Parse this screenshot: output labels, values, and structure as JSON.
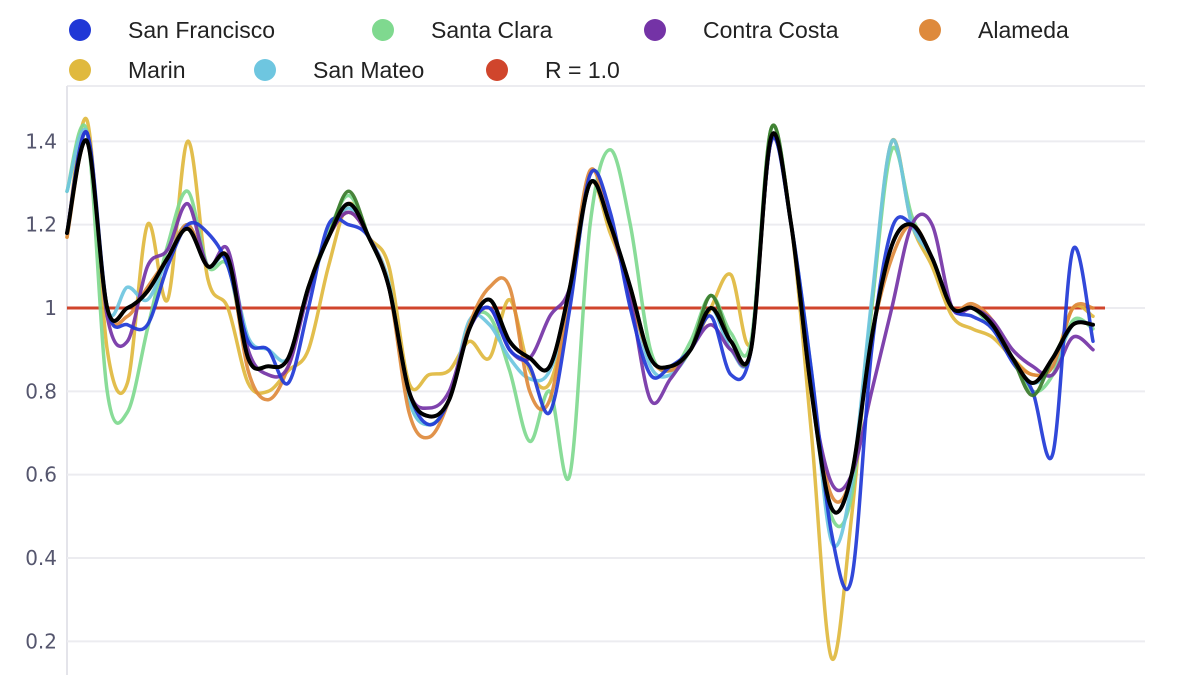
{
  "chart_data": {
    "type": "line",
    "title": "",
    "xlabel": "",
    "ylabel": "",
    "ylim": [
      0.12,
      1.53
    ],
    "y_ticks": [
      "0.2",
      "0.4",
      "0.6",
      "0.8",
      "1",
      "1.2",
      "1.4"
    ],
    "y_tick_values": [
      0.2,
      0.4,
      0.6,
      0.8,
      1.0,
      1.2,
      1.4
    ],
    "grid": true,
    "legend_position": "top",
    "x": [
      0,
      1,
      2,
      3,
      4,
      5,
      6,
      7,
      8,
      9,
      10,
      11,
      12,
      13,
      14,
      15,
      16,
      17,
      18,
      19,
      20,
      21,
      22,
      23,
      24,
      25,
      26,
      27,
      28,
      29,
      30,
      31,
      32,
      33,
      34,
      35,
      36,
      37,
      38,
      39,
      40,
      41,
      42,
      43,
      44,
      45,
      46,
      47,
      48,
      49,
      50,
      51
    ],
    "reference": {
      "name": "R = 1.0",
      "value": 1.0,
      "color": "#d0452c"
    },
    "series": [
      {
        "name": "Marin",
        "color": "#e0b93e",
        "values": [
          1.17,
          1.45,
          0.9,
          0.82,
          1.2,
          1.02,
          1.4,
          1.07,
          1.0,
          0.82,
          0.8,
          0.85,
          0.9,
          1.1,
          1.25,
          1.17,
          1.1,
          0.82,
          0.84,
          0.85,
          0.92,
          0.88,
          1.02,
          0.85,
          0.82,
          1.02,
          1.3,
          1.18,
          1.05,
          0.88,
          0.86,
          0.9,
          1.0,
          1.08,
          0.92,
          1.41,
          1.2,
          0.7,
          0.16,
          0.5,
          1.0,
          1.4,
          1.2,
          1.1,
          0.98,
          0.95,
          0.93,
          0.88,
          0.84,
          0.86,
          1.0,
          0.98
        ]
      },
      {
        "name": "Santa Clara",
        "color": "#7fd98f",
        "values": [
          1.28,
          1.42,
          0.8,
          0.75,
          0.95,
          1.15,
          1.28,
          1.1,
          1.1,
          0.88,
          0.86,
          0.88,
          1.05,
          1.18,
          1.27,
          1.17,
          1.05,
          0.78,
          0.72,
          0.78,
          0.96,
          0.98,
          0.85,
          0.68,
          0.8,
          0.6,
          1.2,
          1.38,
          1.2,
          0.9,
          0.85,
          0.92,
          1.03,
          0.94,
          0.92,
          1.43,
          1.2,
          0.8,
          0.5,
          0.55,
          1.0,
          1.38,
          1.22,
          1.12,
          1.0,
          1.0,
          0.95,
          0.88,
          0.8,
          0.84,
          0.97,
          0.95
        ]
      },
      {
        "name": "San Mateo",
        "color": "#6ec6e0",
        "values": [
          1.28,
          1.42,
          1.0,
          1.05,
          1.02,
          1.12,
          1.2,
          1.1,
          1.12,
          0.93,
          0.9,
          0.88,
          1.04,
          1.17,
          1.24,
          1.17,
          1.06,
          0.78,
          0.72,
          0.78,
          0.97,
          0.96,
          0.88,
          0.83,
          0.85,
          1.03,
          1.3,
          1.2,
          1.04,
          0.86,
          0.84,
          0.9,
          1.0,
          0.9,
          0.9,
          1.41,
          1.2,
          0.85,
          0.44,
          0.58,
          1.02,
          1.4,
          1.2,
          1.12,
          1.0,
          1.0,
          0.96,
          0.88,
          0.82,
          0.86,
          0.96,
          0.96
        ]
      },
      {
        "name": "Alameda",
        "color": "#de8a3c",
        "values": [
          1.17,
          1.4,
          1.0,
          0.98,
          1.05,
          1.12,
          1.2,
          1.1,
          1.12,
          0.85,
          0.78,
          0.86,
          1.05,
          1.17,
          1.23,
          1.17,
          1.05,
          0.75,
          0.69,
          0.78,
          0.96,
          1.05,
          1.05,
          0.8,
          0.78,
          1.05,
          1.33,
          1.2,
          1.03,
          0.88,
          0.85,
          0.9,
          1.0,
          0.92,
          0.9,
          1.4,
          1.2,
          0.8,
          0.55,
          0.6,
          0.93,
          1.12,
          1.2,
          1.12,
          1.0,
          1.01,
          0.97,
          0.88,
          0.84,
          0.86,
          1.0,
          1.0
        ]
      },
      {
        "name": "Contra Costa",
        "color": "#7433a6",
        "values": [
          1.18,
          1.42,
          0.98,
          0.92,
          1.1,
          1.14,
          1.25,
          1.1,
          1.14,
          0.9,
          0.84,
          0.86,
          1.04,
          1.17,
          1.23,
          1.17,
          1.05,
          0.8,
          0.76,
          0.8,
          0.95,
          1.0,
          0.9,
          0.88,
          0.98,
          1.05,
          1.3,
          1.2,
          1.02,
          0.78,
          0.83,
          0.9,
          0.96,
          0.9,
          0.9,
          1.4,
          1.2,
          0.8,
          0.58,
          0.6,
          0.8,
          1.0,
          1.2,
          1.2,
          1.0,
          1.0,
          0.97,
          0.9,
          0.86,
          0.84,
          0.93,
          0.9
        ]
      },
      {
        "name": "San Francisco",
        "color": "#2038d6",
        "values": [
          1.18,
          1.42,
          1.0,
          0.96,
          0.96,
          1.1,
          1.2,
          1.18,
          1.1,
          0.92,
          0.9,
          0.82,
          1.0,
          1.2,
          1.2,
          1.17,
          1.05,
          0.8,
          0.72,
          0.78,
          0.95,
          1.0,
          0.9,
          0.86,
          0.75,
          1.0,
          1.32,
          1.23,
          1.0,
          0.84,
          0.86,
          0.9,
          0.98,
          0.84,
          0.9,
          1.4,
          1.2,
          0.85,
          0.46,
          0.35,
          0.9,
          1.19,
          1.2,
          1.12,
          1.0,
          0.98,
          0.95,
          0.87,
          0.8,
          0.65,
          1.14,
          0.92
        ]
      },
      {
        "name": "",
        "color": "#3a7a2a",
        "values": [
          1.18,
          1.4,
          1.0,
          1.0,
          1.04,
          1.12,
          1.19,
          1.1,
          1.12,
          0.88,
          0.86,
          0.88,
          1.05,
          1.17,
          1.28,
          1.17,
          1.05,
          0.8,
          0.74,
          0.78,
          0.95,
          1.02,
          0.92,
          0.88,
          0.86,
          1.05,
          1.3,
          1.2,
          1.05,
          0.88,
          0.86,
          0.9,
          1.03,
          0.92,
          0.9,
          1.43,
          1.2,
          0.8,
          0.52,
          0.6,
          0.93,
          1.15,
          1.2,
          1.12,
          1.0,
          1.0,
          0.96,
          0.88,
          0.79,
          0.88,
          0.96,
          0.96
        ]
      },
      {
        "name": "",
        "color": "#000000",
        "values": [
          1.18,
          1.4,
          1.0,
          1.0,
          1.04,
          1.12,
          1.19,
          1.1,
          1.12,
          0.88,
          0.86,
          0.88,
          1.05,
          1.17,
          1.25,
          1.17,
          1.05,
          0.8,
          0.74,
          0.78,
          0.95,
          1.02,
          0.92,
          0.88,
          0.86,
          1.05,
          1.3,
          1.2,
          1.05,
          0.88,
          0.86,
          0.9,
          1.0,
          0.92,
          0.9,
          1.41,
          1.2,
          0.8,
          0.52,
          0.6,
          0.93,
          1.15,
          1.2,
          1.12,
          1.0,
          1.0,
          0.96,
          0.88,
          0.82,
          0.88,
          0.96,
          0.96
        ]
      }
    ],
    "legend": [
      {
        "label": "San Francisco",
        "color": "#2038d6"
      },
      {
        "label": "Santa Clara",
        "color": "#7fd98f"
      },
      {
        "label": "Contra Costa",
        "color": "#7433a6"
      },
      {
        "label": "Alameda",
        "color": "#de8a3c"
      },
      {
        "label": "Marin",
        "color": "#e0b93e"
      },
      {
        "label": "San Mateo",
        "color": "#6ec6e0"
      },
      {
        "label": "R = 1.0",
        "color": "#d0452c"
      }
    ]
  }
}
